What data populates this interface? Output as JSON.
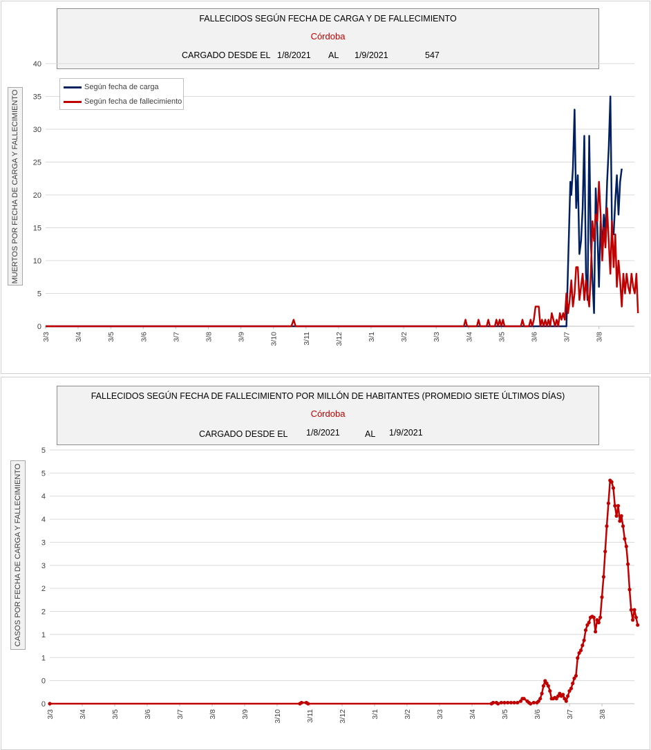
{
  "chart_data": [
    {
      "type": "line",
      "title": "FALLECIDOS SEGÚN FECHA DE CARGA Y DE FALLECIMIENTO",
      "subtitle": "Córdoba",
      "info": {
        "label": "CARGADO DESDE EL",
        "from": "1/8/2021",
        "to_label": "AL",
        "to": "1/9/2021",
        "total": "547"
      },
      "ylabel": "MUERTOS POR FECHA DE CARGA Y FALLECIMIENTO",
      "ylim": [
        0,
        40
      ],
      "yticks": [
        "0",
        "5",
        "10",
        "15",
        "20",
        "25",
        "30",
        "35",
        "40"
      ],
      "xticks": [
        "3/3",
        "3/4",
        "3/5",
        "3/6",
        "3/7",
        "3/8",
        "3/9",
        "3/10",
        "3/11",
        "3/12",
        "3/1",
        "3/2",
        "3/3",
        "3/4",
        "3/5",
        "3/6",
        "3/7",
        "3/8"
      ],
      "grid": true,
      "legend_position": "top-left",
      "series": [
        {
          "name": "Según fecha de carga",
          "color": "#002060",
          "points": [
            [
              0,
              0
            ],
            [
              16.0,
              0
            ],
            [
              16.12,
              22
            ],
            [
              16.15,
              20
            ],
            [
              16.2,
              24
            ],
            [
              16.25,
              33
            ],
            [
              16.3,
              18
            ],
            [
              16.35,
              23
            ],
            [
              16.4,
              11
            ],
            [
              16.45,
              13
            ],
            [
              16.5,
              18
            ],
            [
              16.55,
              29
            ],
            [
              16.6,
              8
            ],
            [
              16.65,
              4
            ],
            [
              16.7,
              29
            ],
            [
              16.75,
              13
            ],
            [
              16.8,
              7
            ],
            [
              16.85,
              2
            ],
            [
              16.9,
              21
            ],
            [
              16.95,
              15
            ],
            [
              17.0,
              6
            ],
            [
              17.05,
              16
            ],
            [
              17.1,
              12
            ],
            [
              17.15,
              17
            ],
            [
              17.2,
              14
            ],
            [
              17.25,
              22
            ],
            [
              17.3,
              27
            ],
            [
              17.35,
              35
            ],
            [
              17.4,
              15
            ],
            [
              17.45,
              14
            ],
            [
              17.5,
              19
            ],
            [
              17.55,
              23
            ],
            [
              17.6,
              17
            ],
            [
              17.65,
              22
            ],
            [
              17.7,
              24
            ]
          ]
        },
        {
          "name": "Según fecha de fallecimiento",
          "color": "#c00000",
          "points": [
            [
              0,
              0
            ],
            [
              7.55,
              0
            ],
            [
              7.62,
              1
            ],
            [
              7.68,
              0
            ],
            [
              12.85,
              0
            ],
            [
              12.9,
              1
            ],
            [
              12.95,
              0
            ],
            [
              13.25,
              0
            ],
            [
              13.3,
              1
            ],
            [
              13.35,
              0
            ],
            [
              13.55,
              0
            ],
            [
              13.6,
              1
            ],
            [
              13.65,
              0
            ],
            [
              13.8,
              0
            ],
            [
              13.85,
              1
            ],
            [
              13.9,
              0
            ],
            [
              13.95,
              1
            ],
            [
              14.0,
              0
            ],
            [
              14.05,
              1
            ],
            [
              14.1,
              0
            ],
            [
              14.6,
              0
            ],
            [
              14.65,
              1
            ],
            [
              14.7,
              0
            ],
            [
              14.85,
              0
            ],
            [
              14.9,
              1
            ],
            [
              14.95,
              0
            ],
            [
              15.0,
              1
            ],
            [
              15.05,
              3
            ],
            [
              15.15,
              3
            ],
            [
              15.2,
              0
            ],
            [
              15.25,
              1
            ],
            [
              15.3,
              0
            ],
            [
              15.35,
              1
            ],
            [
              15.4,
              0
            ],
            [
              15.45,
              1
            ],
            [
              15.5,
              0
            ],
            [
              15.55,
              2
            ],
            [
              15.6,
              1
            ],
            [
              15.65,
              0
            ],
            [
              15.7,
              1
            ],
            [
              15.75,
              0
            ],
            [
              15.8,
              2
            ],
            [
              15.85,
              1
            ],
            [
              15.9,
              2
            ],
            [
              15.95,
              1
            ],
            [
              16.0,
              5
            ],
            [
              16.05,
              2
            ],
            [
              16.1,
              4
            ],
            [
              16.15,
              7
            ],
            [
              16.2,
              3
            ],
            [
              16.25,
              5
            ],
            [
              16.3,
              9
            ],
            [
              16.35,
              9
            ],
            [
              16.4,
              4
            ],
            [
              16.45,
              6
            ],
            [
              16.5,
              8
            ],
            [
              16.55,
              4
            ],
            [
              16.6,
              7
            ],
            [
              16.65,
              5
            ],
            [
              16.7,
              3
            ],
            [
              16.75,
              8
            ],
            [
              16.8,
              16
            ],
            [
              16.85,
              13
            ],
            [
              16.9,
              17
            ],
            [
              16.95,
              16
            ],
            [
              17.0,
              22
            ],
            [
              17.05,
              17
            ],
            [
              17.1,
              10
            ],
            [
              17.15,
              15
            ],
            [
              17.2,
              12
            ],
            [
              17.25,
              18
            ],
            [
              17.3,
              13
            ],
            [
              17.35,
              8
            ],
            [
              17.4,
              16
            ],
            [
              17.45,
              9
            ],
            [
              17.5,
              14
            ],
            [
              17.55,
              6
            ],
            [
              17.6,
              10
            ],
            [
              17.65,
              7
            ],
            [
              17.7,
              3
            ],
            [
              17.75,
              8
            ],
            [
              17.8,
              5
            ],
            [
              17.85,
              8
            ],
            [
              17.9,
              6
            ],
            [
              17.95,
              5
            ],
            [
              18.0,
              8
            ],
            [
              18.05,
              6
            ],
            [
              18.1,
              5
            ],
            [
              18.15,
              8
            ],
            [
              18.2,
              2
            ]
          ]
        }
      ]
    },
    {
      "type": "line",
      "title": "FALLECIDOS SEGÚN FECHA DE FALLECIMIENTO POR MILLÓN DE HABITANTES (PROMEDIO SIETE ÚLTIMOS DÍAS)",
      "subtitle": "Córdoba",
      "info": {
        "label": "CARGADO DESDE EL",
        "from": "1/8/2021",
        "to_label": "AL",
        "to": "1/9/2021"
      },
      "ylabel": "CASOS POR FECHA DE CARGA Y FALLECIMIENTO",
      "ylim": [
        0,
        5
      ],
      "yticks": [
        "0",
        "0",
        "1",
        "1",
        "2",
        "2",
        "3",
        "3",
        "4",
        "4",
        "5",
        "5"
      ],
      "xticks": [
        "3/3",
        "3/4",
        "3/5",
        "3/6",
        "3/7",
        "3/8",
        "3/9",
        "3/10",
        "3/11",
        "3/12",
        "3/1",
        "3/2",
        "3/3",
        "3/4",
        "3/5",
        "3/6",
        "3/7",
        "3/8"
      ],
      "grid": true,
      "series": [
        {
          "name": "Córdoba",
          "color": "#c00000",
          "points": [
            [
              0,
              0
            ],
            [
              7.7,
              0
            ],
            [
              7.75,
              0.02
            ],
            [
              7.9,
              0.02
            ],
            [
              7.95,
              0
            ],
            [
              13.6,
              0
            ],
            [
              13.65,
              0.02
            ],
            [
              13.75,
              0.02
            ],
            [
              13.8,
              0
            ],
            [
              13.9,
              0.02
            ],
            [
              14.0,
              0.02
            ],
            [
              14.1,
              0.02
            ],
            [
              14.2,
              0.02
            ],
            [
              14.3,
              0.02
            ],
            [
              14.4,
              0.02
            ],
            [
              14.5,
              0.05
            ],
            [
              14.55,
              0.1
            ],
            [
              14.6,
              0.1
            ],
            [
              14.7,
              0.05
            ],
            [
              14.75,
              0.02
            ],
            [
              14.8,
              0
            ],
            [
              14.9,
              0.02
            ],
            [
              15.0,
              0.02
            ],
            [
              15.05,
              0.05
            ],
            [
              15.1,
              0.1
            ],
            [
              15.15,
              0.2
            ],
            [
              15.2,
              0.35
            ],
            [
              15.25,
              0.45
            ],
            [
              15.3,
              0.4
            ],
            [
              15.35,
              0.35
            ],
            [
              15.4,
              0.25
            ],
            [
              15.45,
              0.1
            ],
            [
              15.5,
              0.1
            ],
            [
              15.55,
              0.12
            ],
            [
              15.6,
              0.1
            ],
            [
              15.65,
              0.15
            ],
            [
              15.7,
              0.2
            ],
            [
              15.75,
              0.15
            ],
            [
              15.8,
              0.18
            ],
            [
              15.85,
              0.1
            ],
            [
              15.9,
              0.05
            ],
            [
              15.95,
              0.15
            ],
            [
              16.0,
              0.25
            ],
            [
              16.05,
              0.3
            ],
            [
              16.1,
              0.4
            ],
            [
              16.15,
              0.5
            ],
            [
              16.2,
              0.55
            ],
            [
              16.25,
              0.9
            ],
            [
              16.3,
              1.0
            ],
            [
              16.35,
              1.05
            ],
            [
              16.4,
              1.15
            ],
            [
              16.45,
              1.25
            ],
            [
              16.5,
              1.45
            ],
            [
              16.55,
              1.55
            ],
            [
              16.6,
              1.6
            ],
            [
              16.65,
              1.7
            ],
            [
              16.7,
              1.72
            ],
            [
              16.75,
              1.7
            ],
            [
              16.8,
              1.42
            ],
            [
              16.85,
              1.65
            ],
            [
              16.9,
              1.6
            ],
            [
              16.95,
              1.7
            ],
            [
              17.0,
              2.1
            ],
            [
              17.05,
              2.5
            ],
            [
              17.1,
              3.0
            ],
            [
              17.15,
              3.5
            ],
            [
              17.2,
              3.95
            ],
            [
              17.25,
              4.4
            ],
            [
              17.3,
              4.37
            ],
            [
              17.35,
              4.25
            ],
            [
              17.4,
              3.9
            ],
            [
              17.45,
              3.7
            ],
            [
              17.5,
              3.9
            ],
            [
              17.55,
              3.6
            ],
            [
              17.6,
              3.7
            ],
            [
              17.65,
              3.5
            ],
            [
              17.7,
              3.25
            ],
            [
              17.75,
              3.1
            ],
            [
              17.8,
              2.75
            ],
            [
              17.85,
              2.25
            ],
            [
              17.9,
              1.85
            ],
            [
              17.95,
              1.65
            ],
            [
              18.0,
              1.85
            ],
            [
              18.05,
              1.7
            ],
            [
              18.1,
              1.55
            ]
          ]
        }
      ]
    }
  ]
}
